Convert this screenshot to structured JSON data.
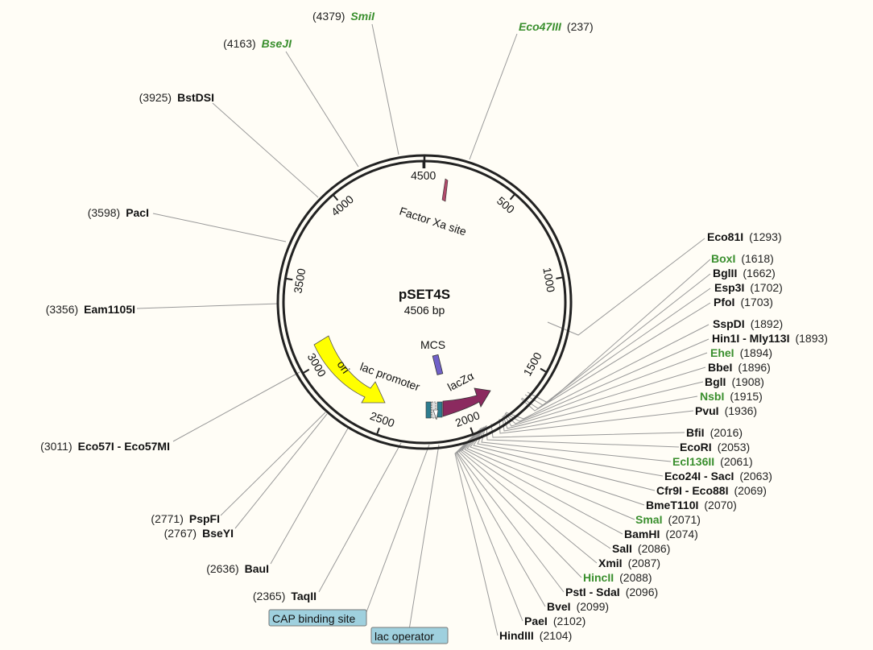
{
  "plasmid": {
    "name": "pSET4S",
    "size_label": "4506 bp",
    "length": 4506
  },
  "colors": {
    "ring": "#222222",
    "leader": "#999999",
    "label_black": "#111111",
    "label_green": "#3a8f2e",
    "ori": "#ffff00",
    "lacZa": "#8b2a5f",
    "box_bg": "#9fd0de"
  },
  "ticks": [
    {
      "pos": 500,
      "label": "500"
    },
    {
      "pos": 1000,
      "label": "1000"
    },
    {
      "pos": 1500,
      "label": "1500"
    },
    {
      "pos": 2000,
      "label": "2000"
    },
    {
      "pos": 2500,
      "label": "2500"
    },
    {
      "pos": 3000,
      "label": "3000"
    },
    {
      "pos": 3500,
      "label": "3500"
    },
    {
      "pos": 4000,
      "label": "4000"
    },
    {
      "pos": 4500,
      "label": "4500"
    }
  ],
  "features": {
    "factor_xa": {
      "label": "Factor Xa site"
    },
    "mcs": {
      "label": "MCS"
    },
    "lac_promoter": {
      "label": "lac promoter"
    },
    "ori": {
      "label": "ori"
    },
    "lacza": {
      "label": "lacZα"
    },
    "cap_binding_site": {
      "label": "CAP binding site"
    },
    "lac_operator": {
      "label": "lac operator"
    }
  },
  "sites": [
    {
      "key": "smil",
      "pos": 4379,
      "pos_text": "(4379)",
      "name": "SmiI",
      "color": "green",
      "side": "left"
    },
    {
      "key": "eco47iii",
      "pos": 237,
      "pos_text": "(237)",
      "name": "Eco47III",
      "color": "green",
      "side": "right"
    },
    {
      "key": "bseji",
      "pos": 4163,
      "pos_text": "(4163)",
      "name": "BseJI",
      "color": "green",
      "side": "left"
    },
    {
      "key": "bstdsi",
      "pos": 3925,
      "pos_text": "(3925)",
      "name": "BstDSI",
      "color": "black",
      "side": "left"
    },
    {
      "key": "paci",
      "pos": 3598,
      "pos_text": "(3598)",
      "name": "PacI",
      "color": "black",
      "side": "left"
    },
    {
      "key": "eam1105i",
      "pos": 3356,
      "pos_text": "(3356)",
      "name": "Eam1105I",
      "color": "black",
      "side": "left"
    },
    {
      "key": "eco57i",
      "pos": 3011,
      "pos_text": "(3011)",
      "name": "Eco57I - Eco57MI",
      "color": "black",
      "side": "left"
    },
    {
      "key": "pspfi",
      "pos": 2771,
      "pos_text": "(2771)",
      "name": "PspFI",
      "color": "black",
      "side": "left"
    },
    {
      "key": "bseyi",
      "pos": 2767,
      "pos_text": "(2767)",
      "name": "BseYI",
      "color": "black",
      "side": "left"
    },
    {
      "key": "baui",
      "pos": 2636,
      "pos_text": "(2636)",
      "name": "BauI",
      "color": "black",
      "side": "left"
    },
    {
      "key": "taqii",
      "pos": 2365,
      "pos_text": "(2365)",
      "name": "TaqII",
      "color": "black",
      "side": "left"
    },
    {
      "key": "eco81i",
      "pos": 1293,
      "pos_text": "(1293)",
      "name": "Eco81I",
      "color": "black",
      "side": "right"
    },
    {
      "key": "boxi",
      "pos": 1618,
      "pos_text": "(1618)",
      "name": "BoxI",
      "color": "green",
      "side": "right"
    },
    {
      "key": "bglii",
      "pos": 1662,
      "pos_text": "(1662)",
      "name": "BglII",
      "color": "black",
      "side": "right"
    },
    {
      "key": "esp3i",
      "pos": 1702,
      "pos_text": "(1702)",
      "name": "Esp3I",
      "color": "black",
      "side": "right"
    },
    {
      "key": "pfoi",
      "pos": 1703,
      "pos_text": "(1703)",
      "name": "PfoI",
      "color": "black",
      "side": "right"
    },
    {
      "key": "sspdi",
      "pos": 1892,
      "pos_text": "(1892)",
      "name": "SspDI",
      "color": "black",
      "side": "right"
    },
    {
      "key": "hin1i",
      "pos": 1893,
      "pos_text": "(1893)",
      "name": "Hin1I - Mly113I",
      "color": "black",
      "side": "right"
    },
    {
      "key": "ehei",
      "pos": 1894,
      "pos_text": "(1894)",
      "name": "EheI",
      "color": "green",
      "side": "right"
    },
    {
      "key": "bbei",
      "pos": 1896,
      "pos_text": "(1896)",
      "name": "BbeI",
      "color": "black",
      "side": "right"
    },
    {
      "key": "bgli",
      "pos": 1908,
      "pos_text": "(1908)",
      "name": "BglI",
      "color": "black",
      "side": "right"
    },
    {
      "key": "nsbi",
      "pos": 1915,
      "pos_text": "(1915)",
      "name": "NsbI",
      "color": "green",
      "side": "right"
    },
    {
      "key": "pvui",
      "pos": 1936,
      "pos_text": "(1936)",
      "name": "PvuI",
      "color": "black",
      "side": "right"
    },
    {
      "key": "bfii",
      "pos": 2016,
      "pos_text": "(2016)",
      "name": "BfiI",
      "color": "black",
      "side": "right"
    },
    {
      "key": "ecori",
      "pos": 2053,
      "pos_text": "(2053)",
      "name": "EcoRI",
      "color": "black",
      "side": "right"
    },
    {
      "key": "ecl136ii",
      "pos": 2061,
      "pos_text": "(2061)",
      "name": "Ecl136II",
      "color": "green",
      "side": "right"
    },
    {
      "key": "eco24i",
      "pos": 2063,
      "pos_text": "(2063)",
      "name": "Eco24I - SacI",
      "color": "black",
      "side": "right"
    },
    {
      "key": "cfr9i",
      "pos": 2069,
      "pos_text": "(2069)",
      "name": "Cfr9I - Eco88I",
      "color": "black",
      "side": "right"
    },
    {
      "key": "bmet110i",
      "pos": 2070,
      "pos_text": "(2070)",
      "name": "BmeT110I",
      "color": "black",
      "side": "right"
    },
    {
      "key": "smai",
      "pos": 2071,
      "pos_text": "(2071)",
      "name": "SmaI",
      "color": "green",
      "side": "right"
    },
    {
      "key": "bamhi",
      "pos": 2074,
      "pos_text": "(2074)",
      "name": "BamHI",
      "color": "black",
      "side": "right"
    },
    {
      "key": "sali",
      "pos": 2086,
      "pos_text": "(2086)",
      "name": "SalI",
      "color": "black",
      "side": "right"
    },
    {
      "key": "xmii",
      "pos": 2087,
      "pos_text": "(2087)",
      "name": "XmiI",
      "color": "black",
      "side": "right"
    },
    {
      "key": "hincii",
      "pos": 2088,
      "pos_text": "(2088)",
      "name": "HincII",
      "color": "green",
      "side": "right"
    },
    {
      "key": "psti",
      "pos": 2096,
      "pos_text": "(2096)",
      "name": "PstI - SdaI",
      "color": "black",
      "side": "right"
    },
    {
      "key": "bvei",
      "pos": 2099,
      "pos_text": "(2099)",
      "name": "BveI",
      "color": "black",
      "side": "right"
    },
    {
      "key": "paei",
      "pos": 2102,
      "pos_text": "(2102)",
      "name": "PaeI",
      "color": "black",
      "side": "right"
    },
    {
      "key": "hindiii",
      "pos": 2104,
      "pos_text": "(2104)",
      "name": "HindIII",
      "color": "black",
      "side": "right"
    }
  ]
}
